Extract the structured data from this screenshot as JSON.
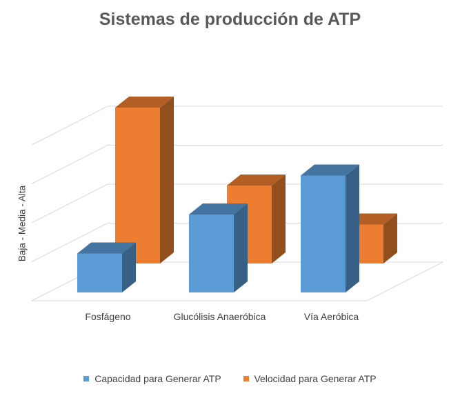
{
  "chart_data": {
    "type": "bar",
    "title": "Sistemas de producción de ATP",
    "xlabel": "",
    "ylabel": "Baja - Media - Alta",
    "categories": [
      "Fosfágeno",
      "Glucólisis Anaeróbica",
      "Vía Aeróbica"
    ],
    "series": [
      {
        "name": "Capacidad para Generar ATP",
        "values": [
          1,
          2,
          3
        ],
        "color": "#5B9BD5"
      },
      {
        "name": "Velocidad para Generar ATP",
        "values": [
          4,
          2,
          1
        ],
        "color": "#ED7D31"
      }
    ],
    "ylim": [
      0,
      5
    ],
    "grid": true,
    "legend_position": "bottom",
    "style": "3d-clustered-column"
  }
}
